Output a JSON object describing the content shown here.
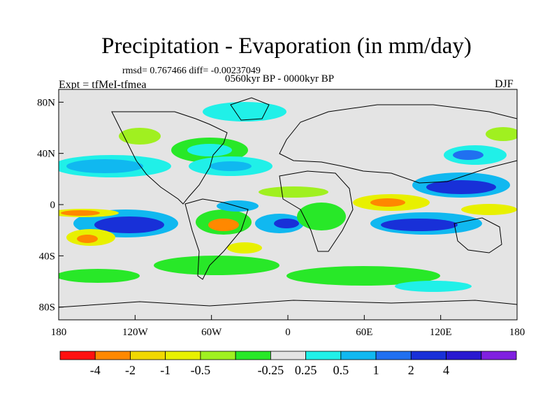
{
  "figure": {
    "title": "Precipitation - Evaporation (in mm/day)",
    "stats": "rmsd= 0.767466 diff= -0.00237049",
    "period": "0560kyr BP - 0000kyr BP",
    "experiment": "Expt = tfMeI-tfmea",
    "season": "DJF"
  },
  "map": {
    "projection": "cylindrical equidistant",
    "lon_range": [
      -180,
      180
    ],
    "lat_range": [
      -90,
      90
    ],
    "background_color": "#e4e4e4",
    "lat_ticks": [
      {
        "value": 80,
        "label": "80N"
      },
      {
        "value": 40,
        "label": "40N"
      },
      {
        "value": 0,
        "label": "0"
      },
      {
        "value": -40,
        "label": "40S"
      },
      {
        "value": -80,
        "label": "80S"
      }
    ],
    "lon_ticks": [
      {
        "value": -180,
        "label": "180"
      },
      {
        "value": -120,
        "label": "120W"
      },
      {
        "value": -60,
        "label": "60W"
      },
      {
        "value": 0,
        "label": "0"
      },
      {
        "value": 60,
        "label": "60E"
      },
      {
        "value": 120,
        "label": "120E"
      },
      {
        "value": 180,
        "label": "180"
      }
    ]
  },
  "colorbar": {
    "colors": [
      "#ff1010",
      "#ff8800",
      "#f0d800",
      "#e8f000",
      "#a0f020",
      "#28e828",
      "#e4e4e4",
      "#20f0e8",
      "#10b8f0",
      "#2070f0",
      "#1830d8",
      "#2818d0",
      "#8020e0"
    ],
    "labels": [
      "-4",
      "-2",
      "-1",
      "-0.5",
      "-0.25",
      "0.25",
      "0.5",
      "1",
      "2",
      "4"
    ]
  }
}
